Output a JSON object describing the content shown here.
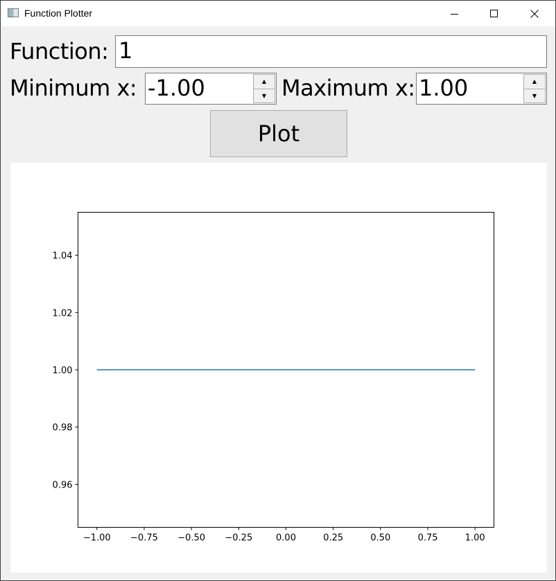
{
  "window": {
    "title": "Function Plotter",
    "icons": {
      "app": "app-window-icon",
      "minimize": "minimize-icon",
      "maximize": "maximize-icon",
      "close": "close-icon"
    }
  },
  "form": {
    "function_label": "Function:",
    "function_value": "1",
    "min_label": "Minimum x:",
    "min_value": "-1.00",
    "max_label": "Maximum x:",
    "max_value": "1.00",
    "plot_button": "Plot"
  },
  "chart_data": {
    "type": "line",
    "title": "",
    "xlabel": "",
    "ylabel": "",
    "x": [
      -1.0,
      1.0
    ],
    "series": [
      {
        "values": [
          1.0,
          1.0
        ],
        "color": "#1f77b4"
      }
    ],
    "xlim": [
      -1.1,
      1.1
    ],
    "ylim": [
      0.945,
      1.055
    ],
    "xticks": [
      -1.0,
      -0.75,
      -0.5,
      -0.25,
      0.0,
      0.25,
      0.5,
      0.75,
      1.0
    ],
    "xtick_labels": [
      "−1.00",
      "−0.75",
      "−0.50",
      "−0.25",
      "0.00",
      "0.25",
      "0.50",
      "0.75",
      "1.00"
    ],
    "yticks": [
      0.96,
      0.98,
      1.0,
      1.02,
      1.04
    ],
    "ytick_labels": [
      "0.96",
      "0.98",
      "1.00",
      "1.02",
      "1.04"
    ],
    "grid": false
  }
}
